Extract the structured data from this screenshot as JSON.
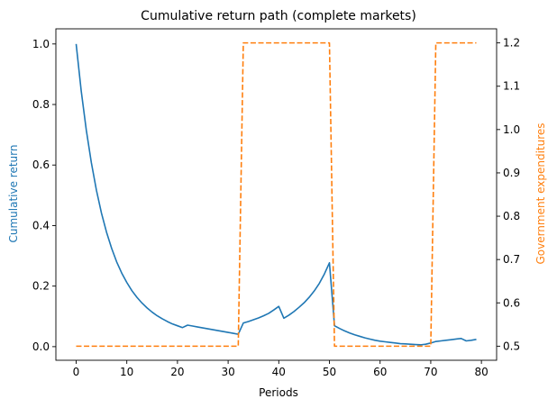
{
  "chart_data": {
    "type": "line",
    "title": "Cumulative return path (complete markets)",
    "xlabel": "Periods",
    "ylabel_left": "Cumulative return",
    "ylabel_right": "Government expenditures",
    "xlim": [
      -4,
      83
    ],
    "ylim_left": [
      -0.045,
      1.05
    ],
    "ylim_right": [
      0.4675,
      1.2325
    ],
    "x_ticks": [
      0,
      10,
      20,
      30,
      40,
      50,
      60,
      70,
      80
    ],
    "y_ticks_left": [
      0.0,
      0.2,
      0.4,
      0.6,
      0.8,
      1.0
    ],
    "y_ticks_right": [
      0.5,
      0.6,
      0.7,
      0.8,
      0.9,
      1.0,
      1.1,
      1.2
    ],
    "grid": false,
    "legend": "none",
    "colors": {
      "left": "#1f77b4",
      "right": "#ff7f0e"
    },
    "series": [
      {
        "axis": "left",
        "style": "solid",
        "color": "#1f77b4",
        "points": [
          [
            0,
            1.0
          ],
          [
            1,
            0.845
          ],
          [
            2,
            0.716
          ],
          [
            3,
            0.608
          ],
          [
            4,
            0.517
          ],
          [
            5,
            0.441
          ],
          [
            6,
            0.378
          ],
          [
            7,
            0.325
          ],
          [
            8,
            0.28
          ],
          [
            9,
            0.243
          ],
          [
            10,
            0.212
          ],
          [
            11,
            0.185
          ],
          [
            12,
            0.163
          ],
          [
            13,
            0.144
          ],
          [
            14,
            0.128
          ],
          [
            15,
            0.114
          ],
          [
            16,
            0.102
          ],
          [
            17,
            0.092
          ],
          [
            18,
            0.083
          ],
          [
            19,
            0.075
          ],
          [
            20,
            0.069
          ],
          [
            21,
            0.063
          ],
          [
            22,
            0.071
          ],
          [
            23,
            0.068
          ],
          [
            24,
            0.065
          ],
          [
            25,
            0.062
          ],
          [
            26,
            0.059
          ],
          [
            27,
            0.056
          ],
          [
            28,
            0.053
          ],
          [
            29,
            0.05
          ],
          [
            30,
            0.047
          ],
          [
            31,
            0.044
          ],
          [
            32,
            0.041
          ],
          [
            33,
            0.078
          ],
          [
            34,
            0.083
          ],
          [
            35,
            0.089
          ],
          [
            36,
            0.095
          ],
          [
            37,
            0.102
          ],
          [
            38,
            0.11
          ],
          [
            39,
            0.121
          ],
          [
            40,
            0.133
          ],
          [
            41,
            0.094
          ],
          [
            42,
            0.104
          ],
          [
            43,
            0.116
          ],
          [
            44,
            0.13
          ],
          [
            45,
            0.145
          ],
          [
            46,
            0.163
          ],
          [
            47,
            0.184
          ],
          [
            48,
            0.209
          ],
          [
            49,
            0.24
          ],
          [
            50,
            0.277
          ],
          [
            51,
            0.069
          ],
          [
            52,
            0.06
          ],
          [
            53,
            0.052
          ],
          [
            54,
            0.045
          ],
          [
            55,
            0.039
          ],
          [
            56,
            0.034
          ],
          [
            57,
            0.029
          ],
          [
            58,
            0.025
          ],
          [
            59,
            0.021
          ],
          [
            60,
            0.018
          ],
          [
            61,
            0.016
          ],
          [
            62,
            0.014
          ],
          [
            63,
            0.012
          ],
          [
            64,
            0.01
          ],
          [
            65,
            0.009
          ],
          [
            66,
            0.008
          ],
          [
            67,
            0.007
          ],
          [
            68,
            0.006
          ],
          [
            69,
            0.008
          ],
          [
            70,
            0.012
          ],
          [
            71,
            0.017
          ],
          [
            72,
            0.019
          ],
          [
            73,
            0.021
          ],
          [
            74,
            0.023
          ],
          [
            75,
            0.025
          ],
          [
            76,
            0.027
          ],
          [
            77,
            0.019
          ],
          [
            78,
            0.021
          ],
          [
            79,
            0.024
          ]
        ]
      },
      {
        "axis": "right",
        "style": "dashed",
        "color": "#ff7f0e",
        "points": [
          [
            0,
            0.5
          ],
          [
            32,
            0.5
          ],
          [
            33,
            1.2
          ],
          [
            50,
            1.2
          ],
          [
            51,
            0.5
          ],
          [
            70,
            0.5
          ],
          [
            71,
            1.2
          ],
          [
            79,
            1.2
          ]
        ]
      }
    ]
  }
}
